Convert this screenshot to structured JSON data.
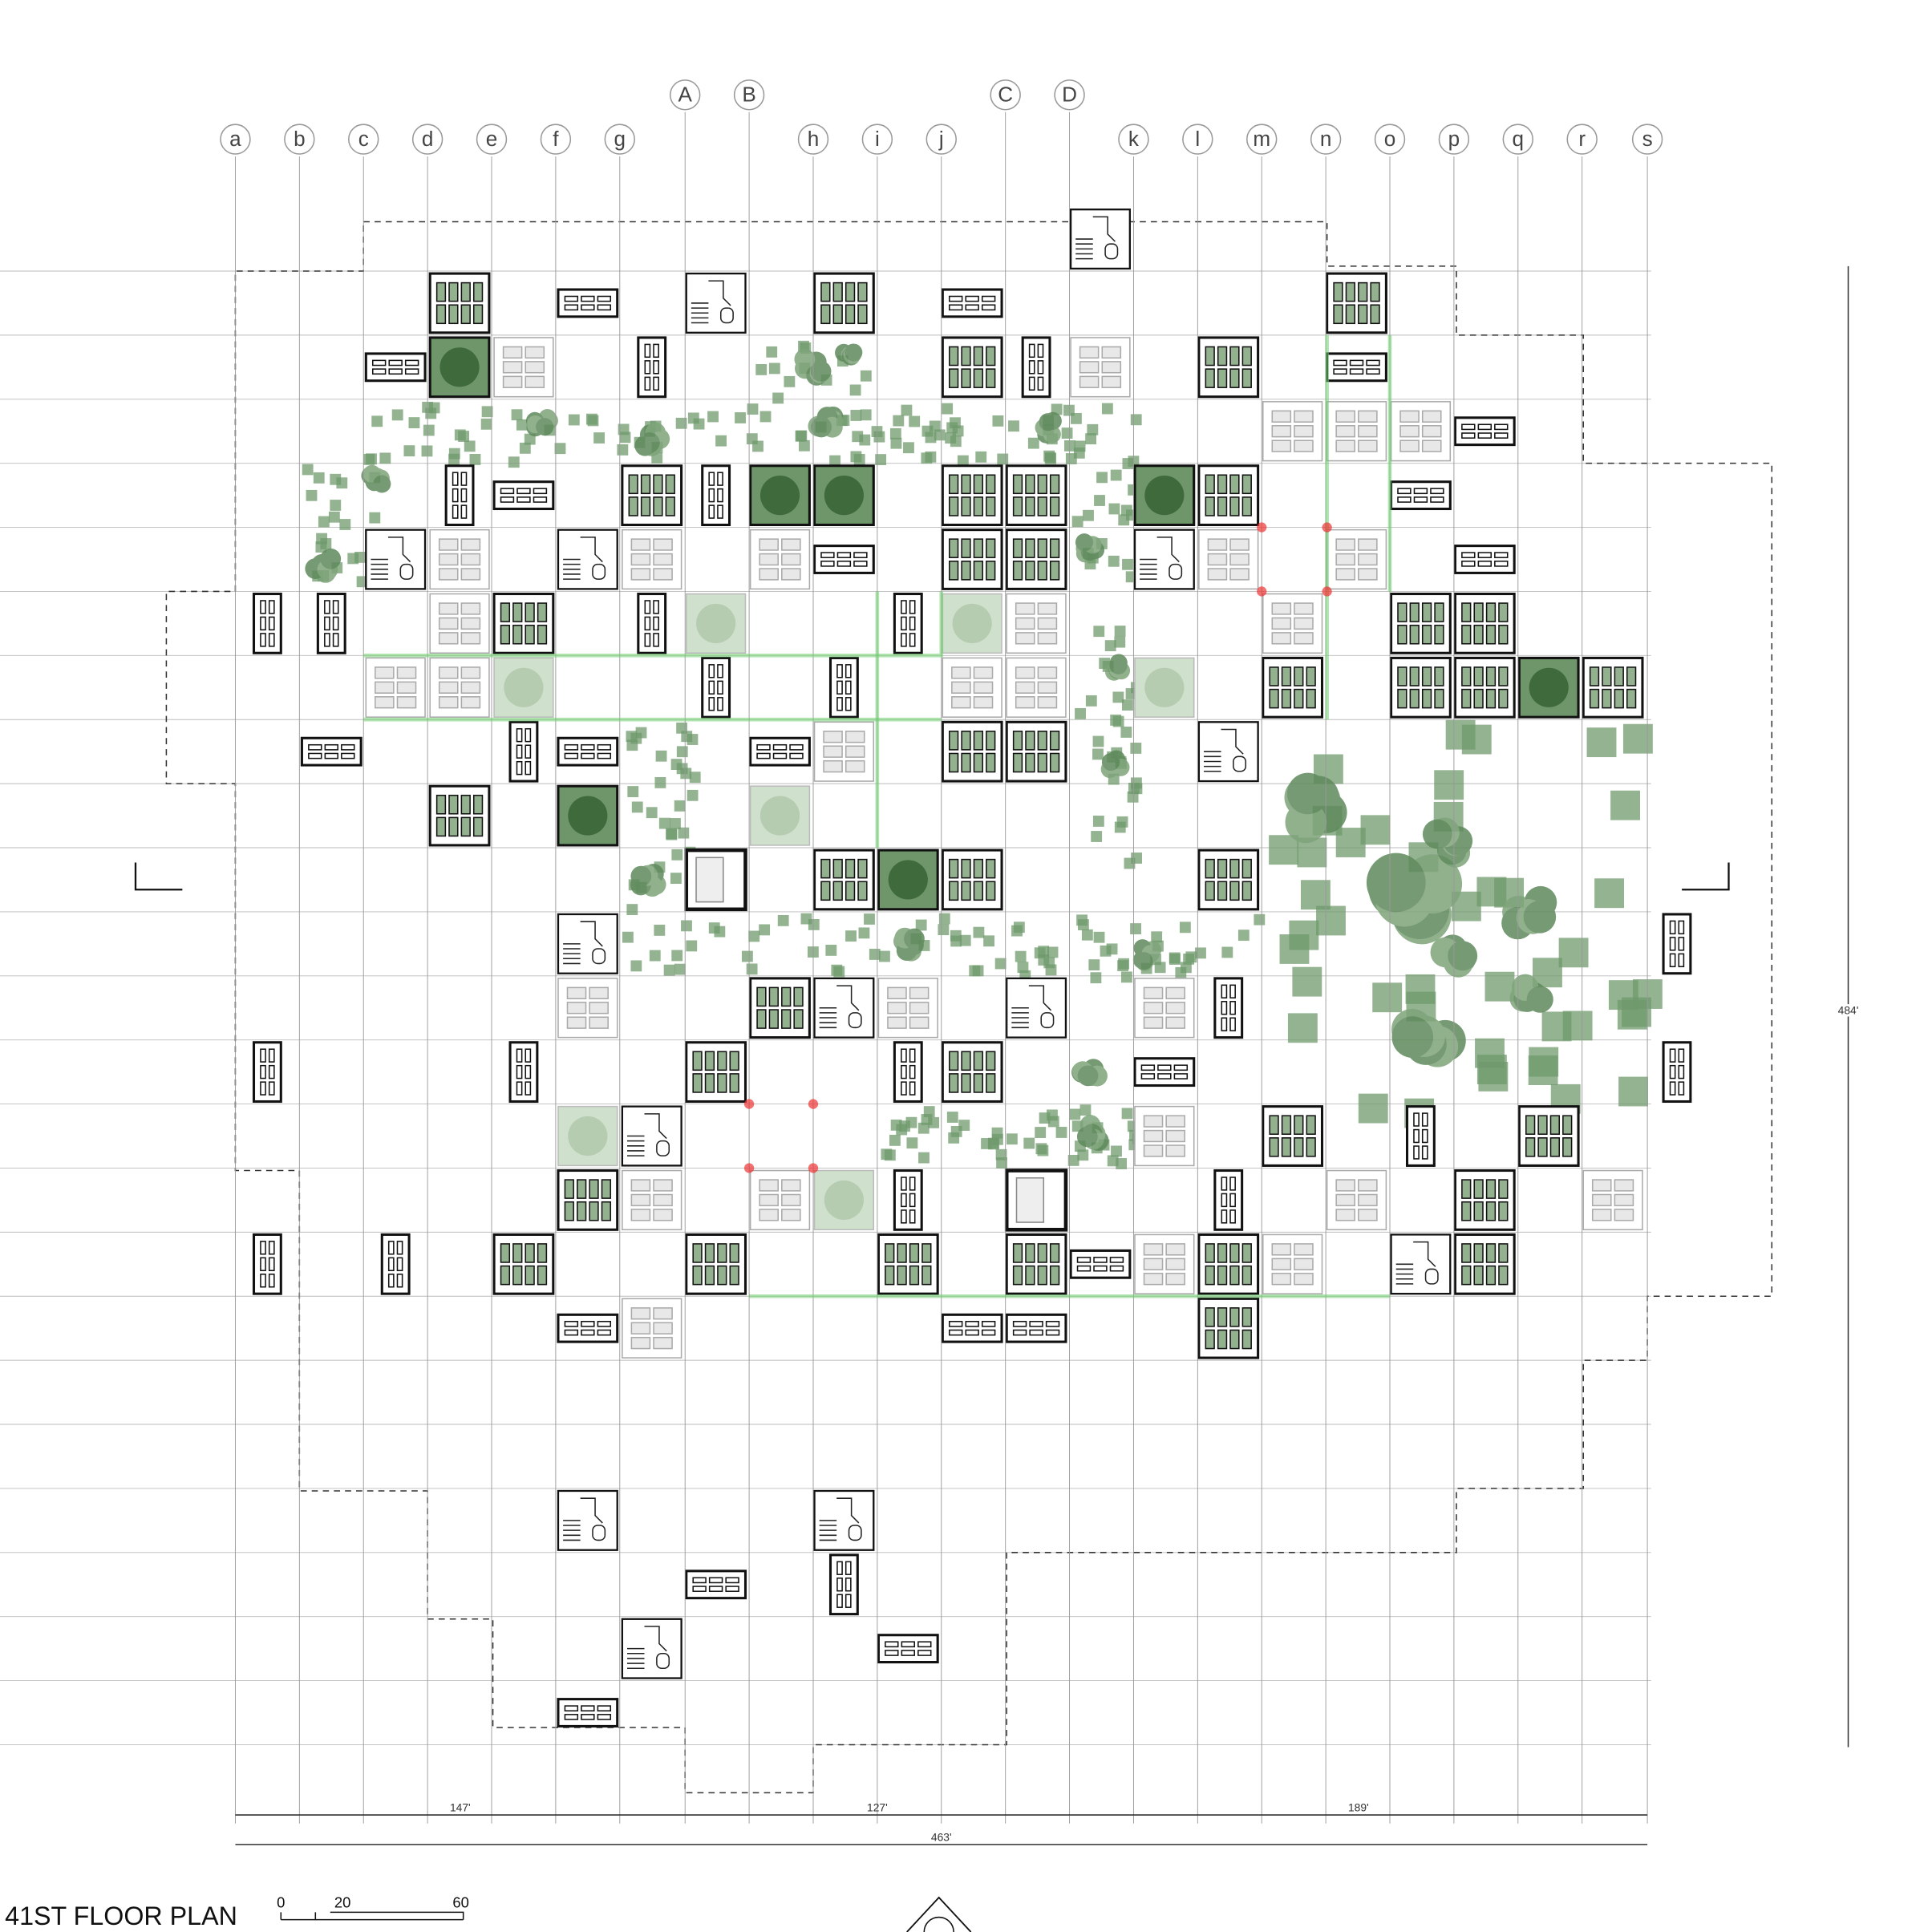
{
  "title": "41ST FLOOR PLAN",
  "grid": {
    "columns_lower": [
      "a",
      "b",
      "c",
      "d",
      "e",
      "f",
      "g",
      "h",
      "i",
      "j",
      "k",
      "l",
      "m",
      "n",
      "o",
      "p",
      "q",
      "r",
      "s"
    ],
    "columns_upper": [
      "A",
      "B",
      "C",
      "D"
    ]
  },
  "dimensions": {
    "segments": [
      "147'",
      "127'",
      "189'"
    ],
    "total": "463'",
    "height": "484'"
  },
  "scale_labels": [
    "0",
    "20",
    "60"
  ]
}
